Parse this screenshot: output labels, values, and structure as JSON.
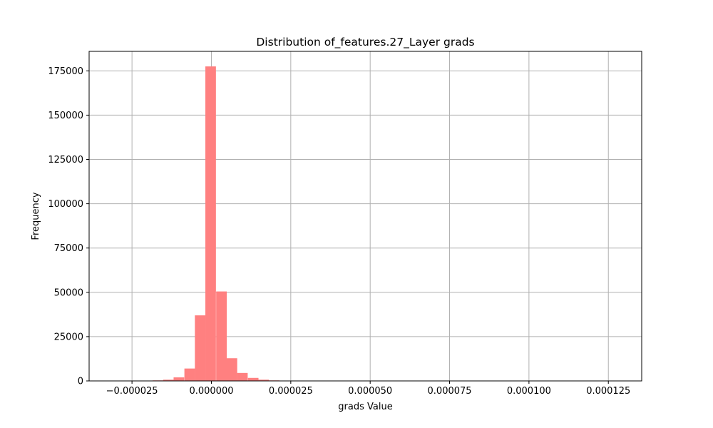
{
  "chart_data": {
    "type": "bar",
    "title": "Distribution of_features.27_Layer grads",
    "xlabel": "grads Value",
    "ylabel": "Frequency",
    "xlim": [
      -3.85e-05,
      0.0001355
    ],
    "ylim": [
      0,
      186000
    ],
    "x_ticks": [
      -2.5e-05,
      0,
      2.5e-05,
      5e-05,
      7.5e-05,
      0.0001,
      0.000125
    ],
    "x_tick_labels": [
      "−0.000025",
      "0.000000",
      "0.000025",
      "0.000050",
      "0.000075",
      "0.000100",
      "0.000125"
    ],
    "y_ticks": [
      0,
      25000,
      50000,
      75000,
      100000,
      125000,
      150000,
      175000
    ],
    "y_tick_labels": [
      "0",
      "25000",
      "50000",
      "75000",
      "100000",
      "125000",
      "150000",
      "175000"
    ],
    "bin_width": 3.33e-06,
    "bins": [
      {
        "left": -1.85e-05,
        "count": 300
      },
      {
        "left": -1.52e-05,
        "count": 700
      },
      {
        "left": -1.19e-05,
        "count": 2000
      },
      {
        "left": -8.5e-06,
        "count": 7000
      },
      {
        "left": -5.2e-06,
        "count": 37000
      },
      {
        "left": -1.9e-06,
        "count": 177500
      },
      {
        "left": 1.5e-06,
        "count": 50500
      },
      {
        "left": 4.8e-06,
        "count": 12800
      },
      {
        "left": 8.1e-06,
        "count": 4500
      },
      {
        "left": 1.15e-05,
        "count": 1700
      },
      {
        "left": 1.48e-05,
        "count": 700
      },
      {
        "left": 1.81e-05,
        "count": 300
      },
      {
        "left": 2.15e-05,
        "count": 150
      }
    ],
    "bar_color": "#ff8080",
    "grid": true,
    "grid_color": "#b0b0b0"
  }
}
